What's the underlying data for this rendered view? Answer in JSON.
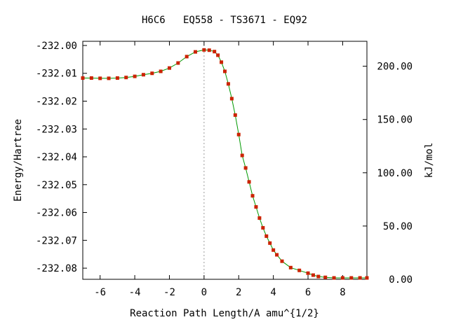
{
  "chart_data": {
    "type": "scatter",
    "title": "H6C6   EQ558 - TS3671 - EQ92",
    "xlabel": "Reaction Path Length/A amu^{1/2}",
    "ylabel": "Energy/Hartree",
    "y2label": "kJ/mol",
    "xlim": [
      -7,
      9.4
    ],
    "ylim": [
      -232.084,
      -231.9985
    ],
    "y2lim": [
      0,
      223.4
    ],
    "x_ticks": [
      -6,
      -4,
      -2,
      0,
      2,
      4,
      6,
      8
    ],
    "x_tick_labels": [
      "-6",
      "-4",
      "-2",
      "0",
      "2",
      "4",
      "6",
      "8"
    ],
    "y_ticks": [
      -232.0,
      -232.01,
      -232.02,
      -232.03,
      -232.04,
      -232.05,
      -232.06,
      -232.07,
      -232.08
    ],
    "y_tick_labels": [
      "-232.00",
      "-232.01",
      "-232.02",
      "-232.03",
      "-232.04",
      "-232.05",
      "-232.06",
      "-232.07",
      "-232.08"
    ],
    "y2_ticks": [
      0,
      50,
      100,
      150,
      200
    ],
    "y2_tick_labels": [
      "0.00",
      "50.00",
      "100.00",
      "150.00",
      "200.00"
    ],
    "ts_marker_x": 0,
    "grid": false,
    "legend": "none",
    "colors": {
      "points": "#cc2200",
      "line": "#009900",
      "ts_line": "#999999"
    },
    "series": [
      {
        "x": [
          -7.0,
          -6.5,
          -6.0,
          -5.5,
          -5.0,
          -4.5,
          -4.0,
          -3.5,
          -3.0,
          -2.5,
          -2.0,
          -1.5,
          -1.0,
          -0.5,
          0.0,
          0.3,
          0.6,
          0.8,
          1.0,
          1.2,
          1.4,
          1.6,
          1.8,
          2.0,
          2.2,
          2.4,
          2.6,
          2.8,
          3.0,
          3.2,
          3.4,
          3.6,
          3.8,
          4.0,
          4.2,
          4.5,
          5.0,
          5.5,
          6.0,
          6.3,
          6.6,
          7.0,
          7.5,
          8.0,
          8.5,
          9.0,
          9.4
        ],
        "y": [
          -232.0117,
          -232.0117,
          -232.0118,
          -232.0118,
          -232.0117,
          -232.0115,
          -232.0111,
          -232.0105,
          -232.01,
          -232.0093,
          -232.0081,
          -232.0063,
          -232.004,
          -232.0023,
          -232.0016,
          -232.0017,
          -232.0022,
          -232.0035,
          -232.006,
          -232.0093,
          -232.0138,
          -232.0191,
          -232.025,
          -232.032,
          -232.0395,
          -232.044,
          -232.049,
          -232.054,
          -232.058,
          -232.062,
          -232.0655,
          -232.0685,
          -232.071,
          -232.0735,
          -232.0752,
          -232.0775,
          -232.0798,
          -232.0808,
          -232.0818,
          -232.0825,
          -232.083,
          -232.0833,
          -232.0835,
          -232.0835,
          -232.0835,
          -232.0835,
          -232.0835
        ]
      }
    ]
  }
}
